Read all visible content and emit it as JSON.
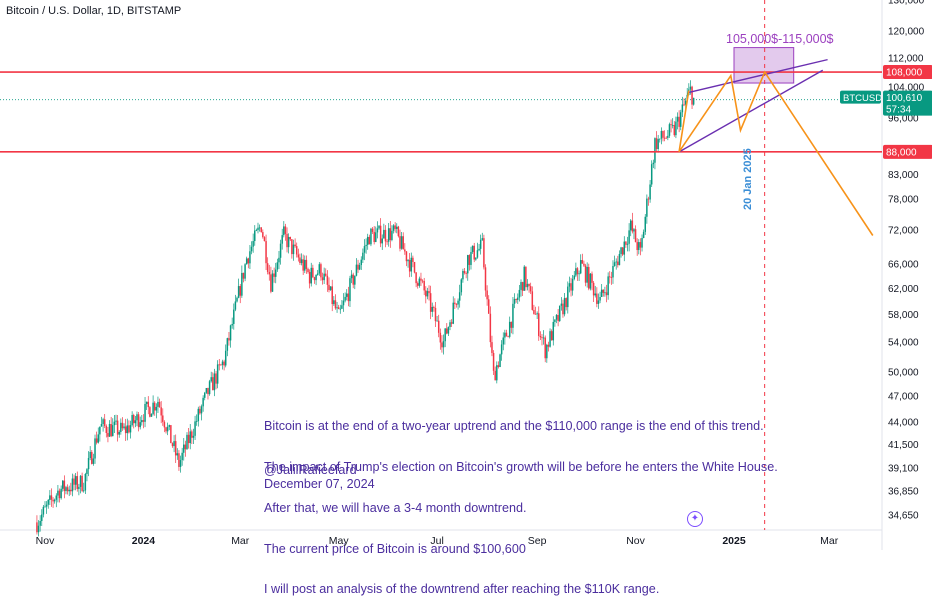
{
  "header": {
    "title": "Bitcoin / U.S. Dollar, 1D, BITSTAMP"
  },
  "chart_data": {
    "type": "candlestick",
    "symbol": "BTCUSD",
    "y_scale": "log",
    "y_ticks": [
      34650,
      36850,
      39100,
      41500,
      44000,
      47000,
      50000,
      54000,
      58000,
      62000,
      66000,
      72000,
      78000,
      83000,
      88000,
      96000,
      104000,
      112000,
      120000,
      130000
    ],
    "y_tick_labels": [
      "34,650",
      "36,850",
      "39,100",
      "41,500",
      "44,000",
      "47,000",
      "50,000",
      "54,000",
      "58,000",
      "62,000",
      "66,000",
      "72,000",
      "78,000",
      "83,000",
      "88,000",
      "96,000",
      "104,000",
      "112,000",
      "120,000",
      "130,000"
    ],
    "x_tick_labels": [
      {
        "label": "Nov",
        "date": "2023-11-01"
      },
      {
        "label": "2024",
        "date": "2024-01-01"
      },
      {
        "label": "Mar",
        "date": "2024-03-01"
      },
      {
        "label": "May",
        "date": "2024-05-01"
      },
      {
        "label": "Jul",
        "date": "2024-07-01"
      },
      {
        "label": "Sep",
        "date": "2024-09-01"
      },
      {
        "label": "Nov",
        "date": "2024-11-01"
      },
      {
        "label": "2025",
        "date": "2025-01-01"
      },
      {
        "label": "Mar",
        "date": "2025-03-01"
      }
    ],
    "price_path": [
      [
        "2023-10-27",
        34000
      ],
      [
        "2023-11-10",
        37000
      ],
      [
        "2023-11-25",
        37700
      ],
      [
        "2023-12-05",
        43500
      ],
      [
        "2023-12-20",
        43000
      ],
      [
        "2024-01-10",
        46500
      ],
      [
        "2024-01-23",
        39500
      ],
      [
        "2024-02-10",
        47500
      ],
      [
        "2024-02-20",
        51500
      ],
      [
        "2024-03-05",
        67000
      ],
      [
        "2024-03-14",
        73000
      ],
      [
        "2024-03-20",
        63000
      ],
      [
        "2024-03-28",
        71000
      ],
      [
        "2024-04-13",
        64000
      ],
      [
        "2024-04-20",
        65000
      ],
      [
        "2024-05-01",
        57500
      ],
      [
        "2024-05-20",
        71000
      ],
      [
        "2024-06-05",
        71500
      ],
      [
        "2024-06-25",
        60500
      ],
      [
        "2024-07-05",
        54000
      ],
      [
        "2024-07-20",
        67000
      ],
      [
        "2024-07-29",
        69000
      ],
      [
        "2024-08-05",
        49500
      ],
      [
        "2024-08-24",
        64000
      ],
      [
        "2024-09-06",
        53000
      ],
      [
        "2024-09-28",
        66000
      ],
      [
        "2024-10-10",
        60000
      ],
      [
        "2024-10-29",
        72500
      ],
      [
        "2024-11-04",
        67800
      ],
      [
        "2024-11-13",
        90000
      ],
      [
        "2024-11-25",
        93000
      ],
      [
        "2024-12-05",
        103000
      ],
      [
        "2024-12-07",
        100610
      ]
    ],
    "horizontal_levels": [
      {
        "value": 108000,
        "label": "108,000",
        "color": "#f23645"
      },
      {
        "value": 88000,
        "label": "88,000",
        "color": "#f23645"
      }
    ],
    "current_price": {
      "symbol_label": "BTCUSD",
      "value": 100610,
      "value_label": "100,610",
      "countdown": "57:34",
      "color": "#089981"
    },
    "target_zone": {
      "label": "105,000$-115,000$",
      "low": 105000,
      "high": 115000,
      "from": "2025-01-01",
      "to": "2025-02-07",
      "color": "#9b3fbf"
    },
    "vertical_marker": {
      "label": "20 Jan 2025",
      "date": "2025-01-20",
      "color": "#f23645"
    },
    "wedge": {
      "upper": [
        [
          "2024-12-04",
          102500
        ],
        [
          "2025-02-28",
          111500
        ]
      ],
      "lower": [
        [
          "2024-11-28",
          88000
        ],
        [
          "2025-02-25",
          108500
        ]
      ],
      "color": "#6a2fb0"
    },
    "projection": {
      "color": "#f7931a",
      "points": [
        [
          "2024-12-04",
          103000
        ],
        [
          "2024-11-28",
          88000
        ],
        [
          "2024-12-30",
          107000
        ],
        [
          "2025-01-05",
          93000
        ],
        [
          "2025-01-20",
          108000
        ],
        [
          "2025-03-28",
          71000
        ]
      ]
    }
  },
  "annotation": {
    "lines": [
      "Bitcoin is at the end of a two-year uptrend and the $110,000 range is the end of this trend.",
      "The impact of Trump's election on Bitcoin's growth will be before he enters the White House.",
      "After that, we will have a 3-4 month downtrend.",
      "The current price of Bitcoin is around $100,600",
      "I will post an analysis of the downtrend after reaching the $110K range."
    ],
    "author": "@JalilRafieefard",
    "date": "December 07, 2024"
  }
}
